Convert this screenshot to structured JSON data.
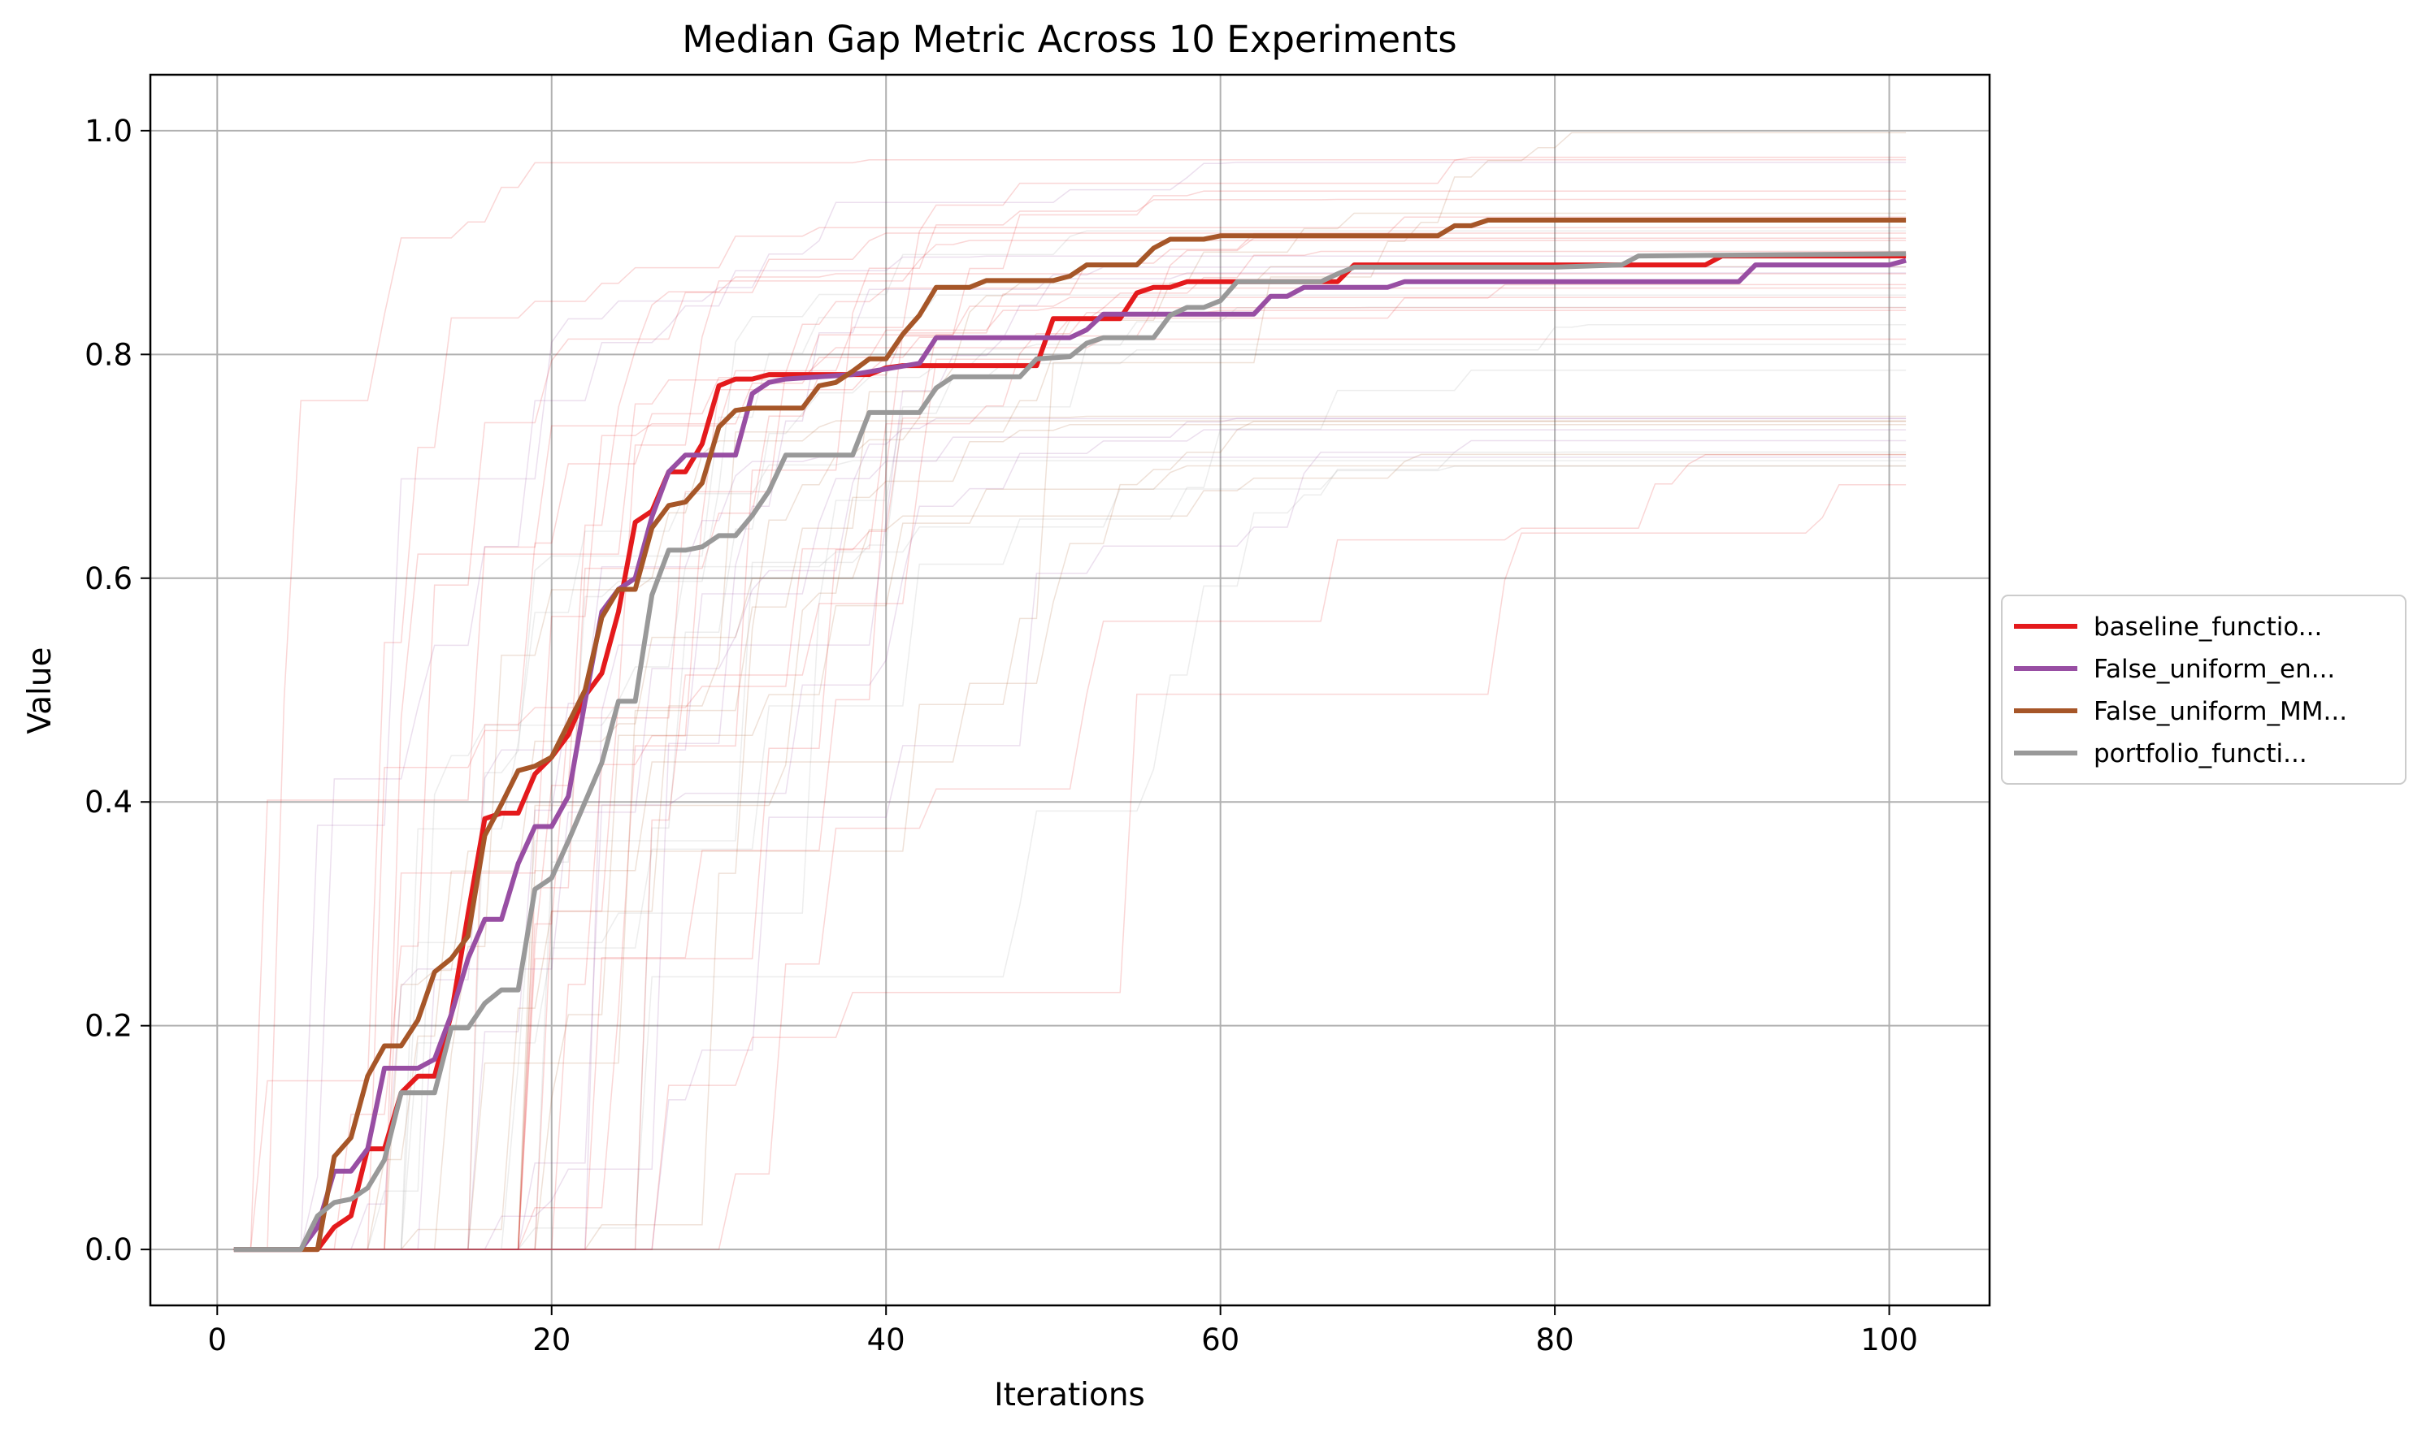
{
  "chart_data": {
    "type": "line",
    "title": "Median Gap Metric Across 10 Experiments",
    "xlabel": "Iterations",
    "ylabel": "Value",
    "xlim": [
      -4,
      106
    ],
    "ylim": [
      -0.05,
      1.05
    ],
    "xticks": [
      0,
      20,
      40,
      60,
      80,
      100
    ],
    "yticks": [
      0.0,
      0.2,
      0.4,
      0.6,
      0.8,
      1.0
    ],
    "grid": true,
    "legend_position": "right-outside-center",
    "series": [
      {
        "name": "baseline_functio...",
        "color": "#e41a1c",
        "points": [
          [
            1,
            0
          ],
          [
            6,
            0
          ],
          [
            7,
            0.02
          ],
          [
            8,
            0.03
          ],
          [
            9,
            0.09
          ],
          [
            10,
            0.09
          ],
          [
            11,
            0.14
          ],
          [
            12,
            0.155
          ],
          [
            13,
            0.155
          ],
          [
            14,
            0.21
          ],
          [
            15,
            0.3
          ],
          [
            16,
            0.385
          ],
          [
            17,
            0.39
          ],
          [
            18,
            0.39
          ],
          [
            19,
            0.425
          ],
          [
            20,
            0.44
          ],
          [
            21,
            0.46
          ],
          [
            22,
            0.495
          ],
          [
            23,
            0.515
          ],
          [
            24,
            0.57
          ],
          [
            25,
            0.65
          ],
          [
            26,
            0.66
          ],
          [
            27,
            0.695
          ],
          [
            28,
            0.695
          ],
          [
            29,
            0.72
          ],
          [
            30,
            0.772
          ],
          [
            31,
            0.778
          ],
          [
            32,
            0.778
          ],
          [
            33,
            0.782
          ],
          [
            39,
            0.782
          ],
          [
            40,
            0.788
          ],
          [
            41,
            0.79
          ],
          [
            49,
            0.79
          ],
          [
            50,
            0.832
          ],
          [
            54,
            0.832
          ],
          [
            55,
            0.855
          ],
          [
            56,
            0.86
          ],
          [
            57,
            0.86
          ],
          [
            58,
            0.865
          ],
          [
            67,
            0.865
          ],
          [
            68,
            0.88
          ],
          [
            89,
            0.88
          ],
          [
            90,
            0.888
          ],
          [
            101,
            0.888
          ]
        ]
      },
      {
        "name": "False_uniform_en...",
        "color": "#984ea3",
        "points": [
          [
            1,
            0
          ],
          [
            5,
            0
          ],
          [
            6,
            0.02
          ],
          [
            7,
            0.07
          ],
          [
            8,
            0.07
          ],
          [
            9,
            0.09
          ],
          [
            10,
            0.162
          ],
          [
            12,
            0.162
          ],
          [
            13,
            0.17
          ],
          [
            14,
            0.21
          ],
          [
            15,
            0.26
          ],
          [
            16,
            0.295
          ],
          [
            17,
            0.295
          ],
          [
            18,
            0.345
          ],
          [
            19,
            0.378
          ],
          [
            20,
            0.378
          ],
          [
            21,
            0.405
          ],
          [
            22,
            0.49
          ],
          [
            23,
            0.57
          ],
          [
            24,
            0.59
          ],
          [
            25,
            0.6
          ],
          [
            26,
            0.655
          ],
          [
            27,
            0.695
          ],
          [
            28,
            0.71
          ],
          [
            31,
            0.71
          ],
          [
            32,
            0.765
          ],
          [
            33,
            0.775
          ],
          [
            34,
            0.778
          ],
          [
            38,
            0.782
          ],
          [
            42,
            0.792
          ],
          [
            43,
            0.815
          ],
          [
            51,
            0.815
          ],
          [
            52,
            0.822
          ],
          [
            53,
            0.836
          ],
          [
            62,
            0.836
          ],
          [
            63,
            0.852
          ],
          [
            64,
            0.852
          ],
          [
            65,
            0.86
          ],
          [
            70,
            0.86
          ],
          [
            71,
            0.865
          ],
          [
            91,
            0.865
          ],
          [
            92,
            0.88
          ],
          [
            100,
            0.88
          ],
          [
            101,
            0.884
          ]
        ]
      },
      {
        "name": "False_uniform_MM...",
        "color": "#a65628",
        "points": [
          [
            1,
            0
          ],
          [
            6,
            0
          ],
          [
            7,
            0.083
          ],
          [
            8,
            0.1
          ],
          [
            9,
            0.155
          ],
          [
            10,
            0.182
          ],
          [
            11,
            0.182
          ],
          [
            12,
            0.205
          ],
          [
            13,
            0.248
          ],
          [
            14,
            0.26
          ],
          [
            15,
            0.28
          ],
          [
            16,
            0.37
          ],
          [
            17,
            0.398
          ],
          [
            18,
            0.428
          ],
          [
            19,
            0.432
          ],
          [
            20,
            0.44
          ],
          [
            21,
            0.47
          ],
          [
            22,
            0.5
          ],
          [
            23,
            0.565
          ],
          [
            24,
            0.59
          ],
          [
            25,
            0.59
          ],
          [
            26,
            0.645
          ],
          [
            27,
            0.665
          ],
          [
            28,
            0.668
          ],
          [
            29,
            0.685
          ],
          [
            30,
            0.735
          ],
          [
            31,
            0.75
          ],
          [
            32,
            0.752
          ],
          [
            35,
            0.752
          ],
          [
            36,
            0.772
          ],
          [
            37,
            0.775
          ],
          [
            38,
            0.785
          ],
          [
            39,
            0.796
          ],
          [
            40,
            0.796
          ],
          [
            41,
            0.818
          ],
          [
            42,
            0.835
          ],
          [
            43,
            0.86
          ],
          [
            45,
            0.86
          ],
          [
            46,
            0.866
          ],
          [
            50,
            0.866
          ],
          [
            51,
            0.87
          ],
          [
            52,
            0.88
          ],
          [
            55,
            0.88
          ],
          [
            56,
            0.895
          ],
          [
            57,
            0.903
          ],
          [
            59,
            0.903
          ],
          [
            60,
            0.906
          ],
          [
            73,
            0.906
          ],
          [
            74,
            0.915
          ],
          [
            75,
            0.915
          ],
          [
            76,
            0.92
          ],
          [
            101,
            0.92
          ]
        ]
      },
      {
        "name": "portfolio_functi...",
        "color": "#999999",
        "points": [
          [
            1,
            0
          ],
          [
            5,
            0
          ],
          [
            6,
            0.03
          ],
          [
            7,
            0.042
          ],
          [
            8,
            0.045
          ],
          [
            9,
            0.055
          ],
          [
            10,
            0.08
          ],
          [
            11,
            0.14
          ],
          [
            13,
            0.14
          ],
          [
            14,
            0.198
          ],
          [
            15,
            0.198
          ],
          [
            16,
            0.22
          ],
          [
            17,
            0.232
          ],
          [
            18,
            0.232
          ],
          [
            19,
            0.322
          ],
          [
            20,
            0.332
          ],
          [
            21,
            0.365
          ],
          [
            22,
            0.4
          ],
          [
            23,
            0.435
          ],
          [
            24,
            0.49
          ],
          [
            25,
            0.49
          ],
          [
            26,
            0.585
          ],
          [
            27,
            0.625
          ],
          [
            28,
            0.625
          ],
          [
            29,
            0.628
          ],
          [
            30,
            0.638
          ],
          [
            31,
            0.638
          ],
          [
            32,
            0.656
          ],
          [
            33,
            0.678
          ],
          [
            34,
            0.71
          ],
          [
            38,
            0.71
          ],
          [
            39,
            0.748
          ],
          [
            42,
            0.748
          ],
          [
            43,
            0.77
          ],
          [
            44,
            0.78
          ],
          [
            48,
            0.78
          ],
          [
            49,
            0.796
          ],
          [
            51,
            0.798
          ],
          [
            52,
            0.81
          ],
          [
            53,
            0.815
          ],
          [
            56,
            0.815
          ],
          [
            57,
            0.835
          ],
          [
            58,
            0.842
          ],
          [
            59,
            0.842
          ],
          [
            60,
            0.848
          ],
          [
            61,
            0.865
          ],
          [
            66,
            0.865
          ],
          [
            67,
            0.872
          ],
          [
            68,
            0.878
          ],
          [
            80,
            0.878
          ],
          [
            84,
            0.88
          ],
          [
            85,
            0.888
          ],
          [
            101,
            0.89
          ]
        ]
      }
    ]
  },
  "legend": {
    "items": [
      {
        "label": "baseline_functio...",
        "color": "#e41a1c"
      },
      {
        "label": "False_uniform_en...",
        "color": "#984ea3"
      },
      {
        "label": "False_uniform_MM...",
        "color": "#a65628"
      },
      {
        "label": "portfolio_functi...",
        "color": "#999999"
      }
    ]
  }
}
